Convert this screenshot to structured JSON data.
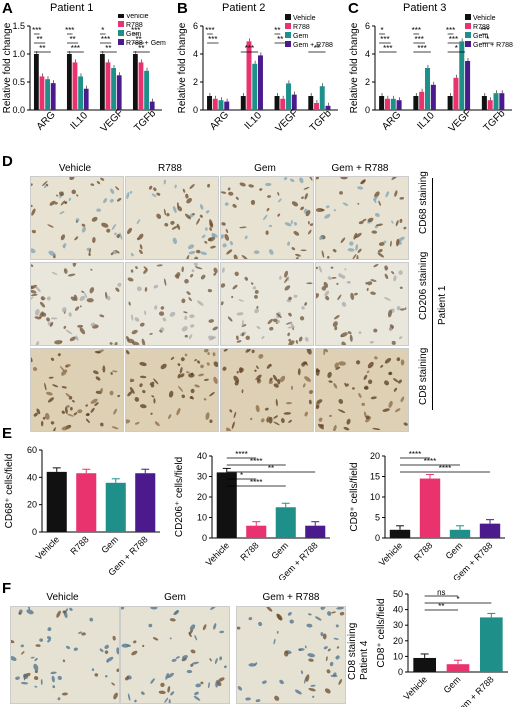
{
  "panels": {
    "A": "A",
    "B": "B",
    "C": "C",
    "D": "D",
    "E": "E",
    "F": "F"
  },
  "titles": {
    "A": "Patient 1",
    "B": "Patient 2",
    "C": "Patient 3"
  },
  "colors": {
    "vehicle": "#111111",
    "r788": "#e8336e",
    "gem": "#1f8f8a",
    "gem_r788": "#4b1a8c"
  },
  "chart_data": [
    {
      "id": "A",
      "type": "bar",
      "title": "Patient 1",
      "ylabel": "Relative fold change",
      "ylim": [
        0,
        1.5
      ],
      "yticks": [
        0,
        0.5,
        1.0,
        1.5
      ],
      "categories": [
        "ARG",
        "IL10",
        "VEGF",
        "TGFb"
      ],
      "series": [
        {
          "name": "Vehicle",
          "values": [
            1.0,
            1.0,
            1.0,
            1.0
          ]
        },
        {
          "name": "R788",
          "values": [
            0.6,
            0.85,
            0.85,
            0.85
          ]
        },
        {
          "name": "Gem",
          "values": [
            0.55,
            0.6,
            0.75,
            0.7
          ]
        },
        {
          "name": "R788 + Gem",
          "values": [
            0.48,
            0.38,
            0.62,
            0.15
          ]
        }
      ],
      "legend": "top-right",
      "sig": [
        "***",
        "**",
        "**",
        "***",
        "**",
        "***",
        "*",
        "***",
        "**",
        "***",
        "**",
        "**"
      ]
    },
    {
      "id": "B",
      "type": "bar",
      "title": "Patient 2",
      "ylabel": "Relative fold change",
      "ylim": [
        0,
        6
      ],
      "yticks": [
        0,
        2,
        4,
        6
      ],
      "categories": [
        "ARG",
        "IL10",
        "VEGF",
        "TGFb"
      ],
      "series": [
        {
          "name": "Vehicle",
          "values": [
            1.0,
            1.0,
            1.0,
            1.0
          ]
        },
        {
          "name": "R788",
          "values": [
            0.8,
            4.9,
            0.8,
            0.5
          ]
        },
        {
          "name": "Gem",
          "values": [
            0.7,
            3.3,
            1.9,
            1.7
          ]
        },
        {
          "name": "Gem + R788",
          "values": [
            0.6,
            3.9,
            1.1,
            0.3
          ]
        }
      ],
      "legend": "top-right",
      "sig": [
        "***",
        "***",
        "***",
        "**",
        "**",
        "**"
      ]
    },
    {
      "id": "C",
      "type": "bar",
      "title": "Patient 3",
      "ylabel": "Relative fold change",
      "ylim": [
        0,
        6
      ],
      "yticks": [
        0,
        2,
        4,
        6
      ],
      "categories": [
        "ARG",
        "IL10",
        "VEGF",
        "TGFb"
      ],
      "series": [
        {
          "name": "Vehicle",
          "values": [
            1.0,
            1.0,
            1.0,
            1.0
          ]
        },
        {
          "name": "R788",
          "values": [
            0.8,
            1.3,
            2.3,
            0.7
          ]
        },
        {
          "name": "Gem",
          "values": [
            0.8,
            3.0,
            4.9,
            1.2
          ]
        },
        {
          "name": "Gem + R788",
          "values": [
            0.7,
            1.8,
            3.5,
            1.2
          ]
        }
      ],
      "legend": "top-right",
      "sig": [
        "*",
        "***",
        "***",
        "***",
        "***",
        "***",
        "***",
        "***",
        "*",
        "***",
        "*"
      ]
    },
    {
      "id": "E1",
      "type": "bar",
      "ylabel": "CD68⁺ cells/field",
      "ylim": [
        0,
        60
      ],
      "yticks": [
        0,
        20,
        40,
        60
      ],
      "categories": [
        "Vehicle",
        "R788",
        "Gem",
        "Gem + R788"
      ],
      "values": [
        44,
        43,
        36,
        43
      ],
      "sig": []
    },
    {
      "id": "E2",
      "type": "bar",
      "ylabel": "CD206⁺ cells/field",
      "ylim": [
        0,
        40
      ],
      "yticks": [
        0,
        10,
        20,
        30,
        40
      ],
      "categories": [
        "Vehicle",
        "R788",
        "Gem",
        "Gem + R788"
      ],
      "values": [
        32,
        6,
        15,
        6
      ],
      "sig": [
        "****",
        "****",
        "**",
        "*",
        "****"
      ]
    },
    {
      "id": "E3",
      "type": "bar",
      "ylabel": "CD8⁺ cells/field",
      "ylim": [
        0,
        20
      ],
      "yticks": [
        0,
        5,
        10,
        15,
        20
      ],
      "categories": [
        "Vehicle",
        "R788",
        "Gem",
        "Gem + R788"
      ],
      "values": [
        2,
        14.5,
        2,
        3.5
      ],
      "sig": [
        "****",
        "****",
        "****"
      ]
    },
    {
      "id": "F1",
      "type": "bar",
      "ylabel": "CD8⁺ cells/field",
      "ylim": [
        0,
        50
      ],
      "yticks": [
        0,
        10,
        20,
        30,
        40,
        50
      ],
      "categories": [
        "Vehicle",
        "Gem",
        "Gem + R788"
      ],
      "values": [
        9,
        5,
        35
      ],
      "sig": [
        "ns",
        "*",
        "**"
      ]
    }
  ],
  "tick_labels": {
    "A": [
      "0.0",
      "0.5",
      "1.0",
      "1.5"
    ],
    "B": [
      "0",
      "2",
      "4",
      "6"
    ],
    "C": [
      "0",
      "2",
      "4",
      "6"
    ],
    "E1": [
      "0",
      "20",
      "40",
      "60"
    ],
    "E2": [
      "0",
      "10",
      "20",
      "30",
      "40"
    ],
    "E3": [
      "0",
      "5",
      "10",
      "15",
      "20"
    ],
    "F1": [
      "0",
      "10",
      "20",
      "30",
      "40",
      "50"
    ]
  },
  "legendA": [
    "Vehicle",
    "R788",
    "Gem",
    "R788 + Gem"
  ],
  "legendBC": [
    "Vehicle",
    "R788",
    "Gem",
    "Gem + R788"
  ],
  "D": {
    "columns": [
      "Vehicle",
      "R788",
      "Gem",
      "Gem + R788"
    ],
    "rows": [
      "CD68 staining",
      "CD206 staining",
      "CD8 staining"
    ],
    "patient": "Patient 1"
  },
  "F": {
    "columns": [
      "Vehicle",
      "Gem",
      "Gem + R788"
    ],
    "side": [
      "CD8 staining",
      "Patient 4"
    ]
  }
}
